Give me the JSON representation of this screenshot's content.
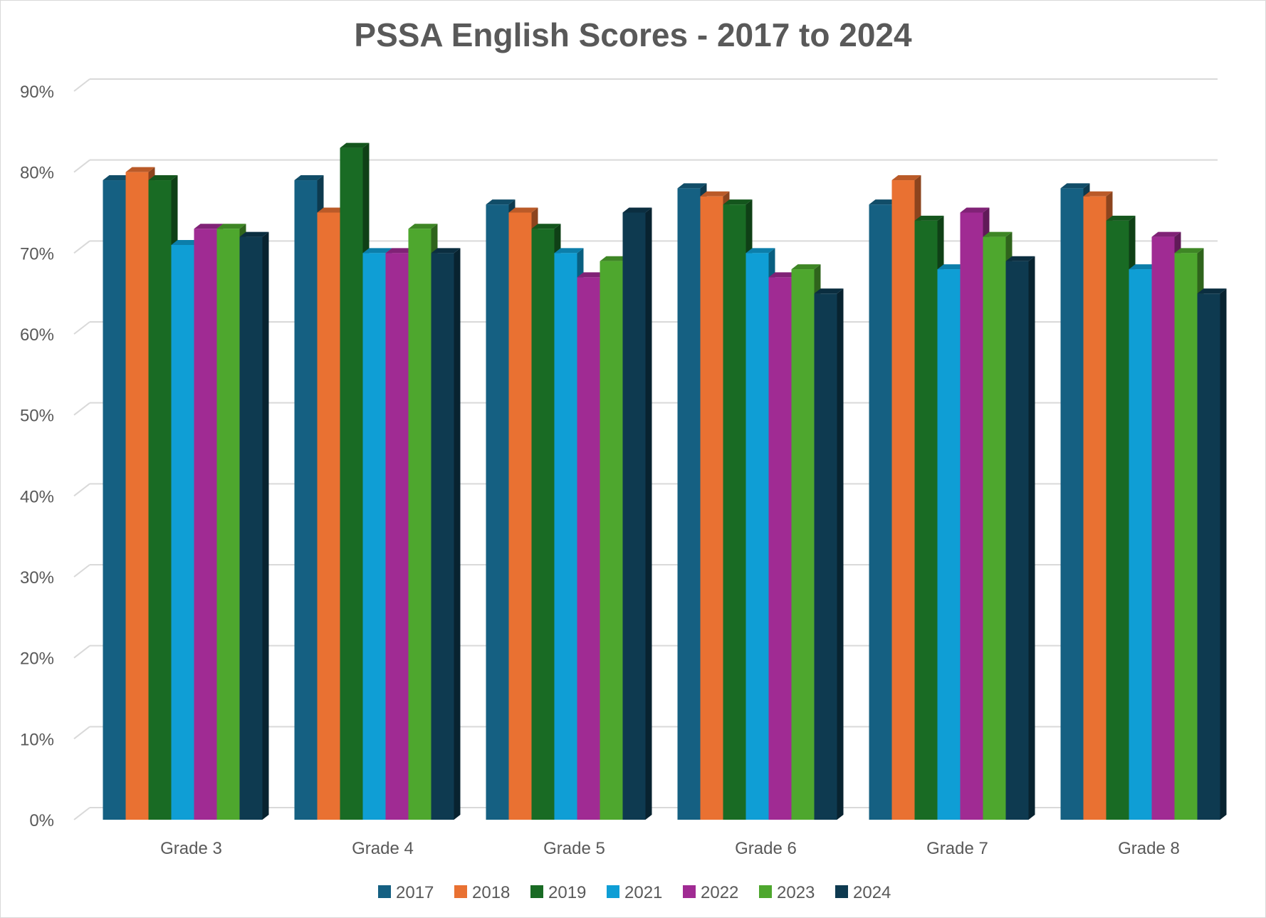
{
  "chart_data": {
    "type": "bar",
    "title": "PSSA English Scores - 2017 to 2024",
    "xlabel": "",
    "ylabel": "",
    "categories": [
      "Grade 3",
      "Grade 4",
      "Grade 5",
      "Grade 6",
      "Grade 7",
      "Grade 8"
    ],
    "series": [
      {
        "name": "2017",
        "color": "#156082",
        "values": [
          79,
          79,
          76,
          78,
          76,
          78
        ]
      },
      {
        "name": "2018",
        "color": "#E97132",
        "values": [
          80,
          75,
          75,
          77,
          79,
          77
        ]
      },
      {
        "name": "2019",
        "color": "#196B24",
        "values": [
          79,
          83,
          73,
          76,
          74,
          74
        ]
      },
      {
        "name": "2021",
        "color": "#0F9ED5",
        "values": [
          71,
          70,
          70,
          70,
          68,
          68
        ]
      },
      {
        "name": "2022",
        "color": "#A02B93",
        "values": [
          73,
          70,
          67,
          67,
          75,
          72
        ]
      },
      {
        "name": "2023",
        "color": "#4EA72E",
        "values": [
          73,
          73,
          69,
          68,
          72,
          70
        ]
      },
      {
        "name": "2024",
        "color": "#0E3A50",
        "values": [
          72,
          70,
          75,
          65,
          69,
          65
        ]
      }
    ],
    "ylim": [
      0,
      90
    ],
    "yticks": [
      "0%",
      "10%",
      "20%",
      "30%",
      "40%",
      "50%",
      "60%",
      "70%",
      "80%",
      "90%"
    ],
    "grid": true,
    "legend_position": "bottom",
    "style": "3d-clustered-column"
  }
}
